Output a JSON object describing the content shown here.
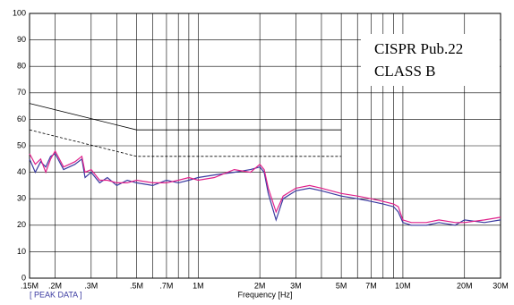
{
  "chart_data": {
    "type": "line",
    "xscale": "log",
    "grid": true,
    "xlabel": "Frequency [Hz]",
    "annotations": [
      "CISPR Pub.22",
      "CLASS B",
      "[ PEAK DATA ]"
    ],
    "xlim": [
      150000,
      30000000
    ],
    "ylim": [
      0,
      100
    ],
    "yticks": [
      0,
      10,
      20,
      30,
      40,
      50,
      60,
      70,
      80,
      90,
      100
    ],
    "xticks": [
      {
        "value": 150000,
        "label": ".15M"
      },
      {
        "value": 200000,
        "label": ".2M"
      },
      {
        "value": 300000,
        "label": ".3M"
      },
      {
        "value": 500000,
        "label": ".5M"
      },
      {
        "value": 700000,
        "label": ".7M"
      },
      {
        "value": 1000000,
        "label": "1M"
      },
      {
        "value": 2000000,
        "label": "2M"
      },
      {
        "value": 3000000,
        "label": "3M"
      },
      {
        "value": 5000000,
        "label": "5M"
      },
      {
        "value": 7000000,
        "label": "7M"
      },
      {
        "value": 10000000,
        "label": "10M"
      },
      {
        "value": 20000000,
        "label": "20M"
      },
      {
        "value": 30000000,
        "label": "30M"
      }
    ],
    "xminor": [
      400000,
      600000,
      800000,
      900000,
      4000000,
      6000000,
      8000000,
      9000000
    ],
    "series": [
      {
        "color": "#3a3aa0",
        "style": "solid",
        "x": [
          150000,
          160000,
          170000,
          180000,
          190000,
          200000,
          220000,
          250000,
          270000,
          280000,
          300000,
          330000,
          360000,
          400000,
          450000,
          500000,
          600000,
          700000,
          800000,
          900000,
          1000000,
          1200000,
          1500000,
          1800000,
          2000000,
          2100000,
          2200000,
          2400000,
          2600000,
          3000000,
          3500000,
          4000000,
          5000000,
          6000000,
          7000000,
          8000000,
          9000000,
          9500000,
          10000000,
          11000000,
          13000000,
          15000000,
          18000000,
          20000000,
          25000000,
          30000000
        ],
        "values": [
          45,
          40,
          44,
          42,
          46,
          47,
          41,
          43,
          45,
          38,
          40,
          36,
          38,
          35,
          37,
          36,
          35,
          37,
          36,
          37,
          38,
          39,
          40,
          41,
          42,
          40,
          32,
          22,
          30,
          33,
          34,
          33,
          31,
          30,
          29,
          28,
          27,
          25,
          21,
          20,
          20,
          21,
          20,
          22,
          21,
          22
        ]
      },
      {
        "color": "#e0208a",
        "style": "solid",
        "x": [
          150000,
          160000,
          170000,
          180000,
          190000,
          200000,
          220000,
          250000,
          270000,
          280000,
          300000,
          330000,
          360000,
          400000,
          450000,
          500000,
          600000,
          700000,
          800000,
          900000,
          1000000,
          1200000,
          1500000,
          1800000,
          2000000,
          2100000,
          2200000,
          2400000,
          2600000,
          3000000,
          3500000,
          4000000,
          5000000,
          6000000,
          7000000,
          8000000,
          9000000,
          9500000,
          10000000,
          11000000,
          13000000,
          15000000,
          18000000,
          20000000,
          25000000,
          30000000
        ],
        "values": [
          47,
          43,
          45,
          40,
          45,
          48,
          42,
          44,
          46,
          40,
          41,
          37,
          37,
          36,
          36,
          37,
          36,
          36,
          37,
          38,
          37,
          38,
          41,
          40,
          43,
          41,
          34,
          25,
          31,
          34,
          35,
          34,
          32,
          31,
          30,
          29,
          28,
          27,
          22,
          21,
          21,
          22,
          21,
          21,
          22,
          23
        ]
      },
      {
        "color": "#000000",
        "style": "solid",
        "x": [
          150000,
          500000,
          5000000
        ],
        "values": [
          66,
          56,
          56
        ]
      },
      {
        "color": "#000000",
        "style": "dashed",
        "x": [
          150000,
          500000,
          5000000
        ],
        "values": [
          56,
          46,
          46
        ]
      }
    ]
  }
}
